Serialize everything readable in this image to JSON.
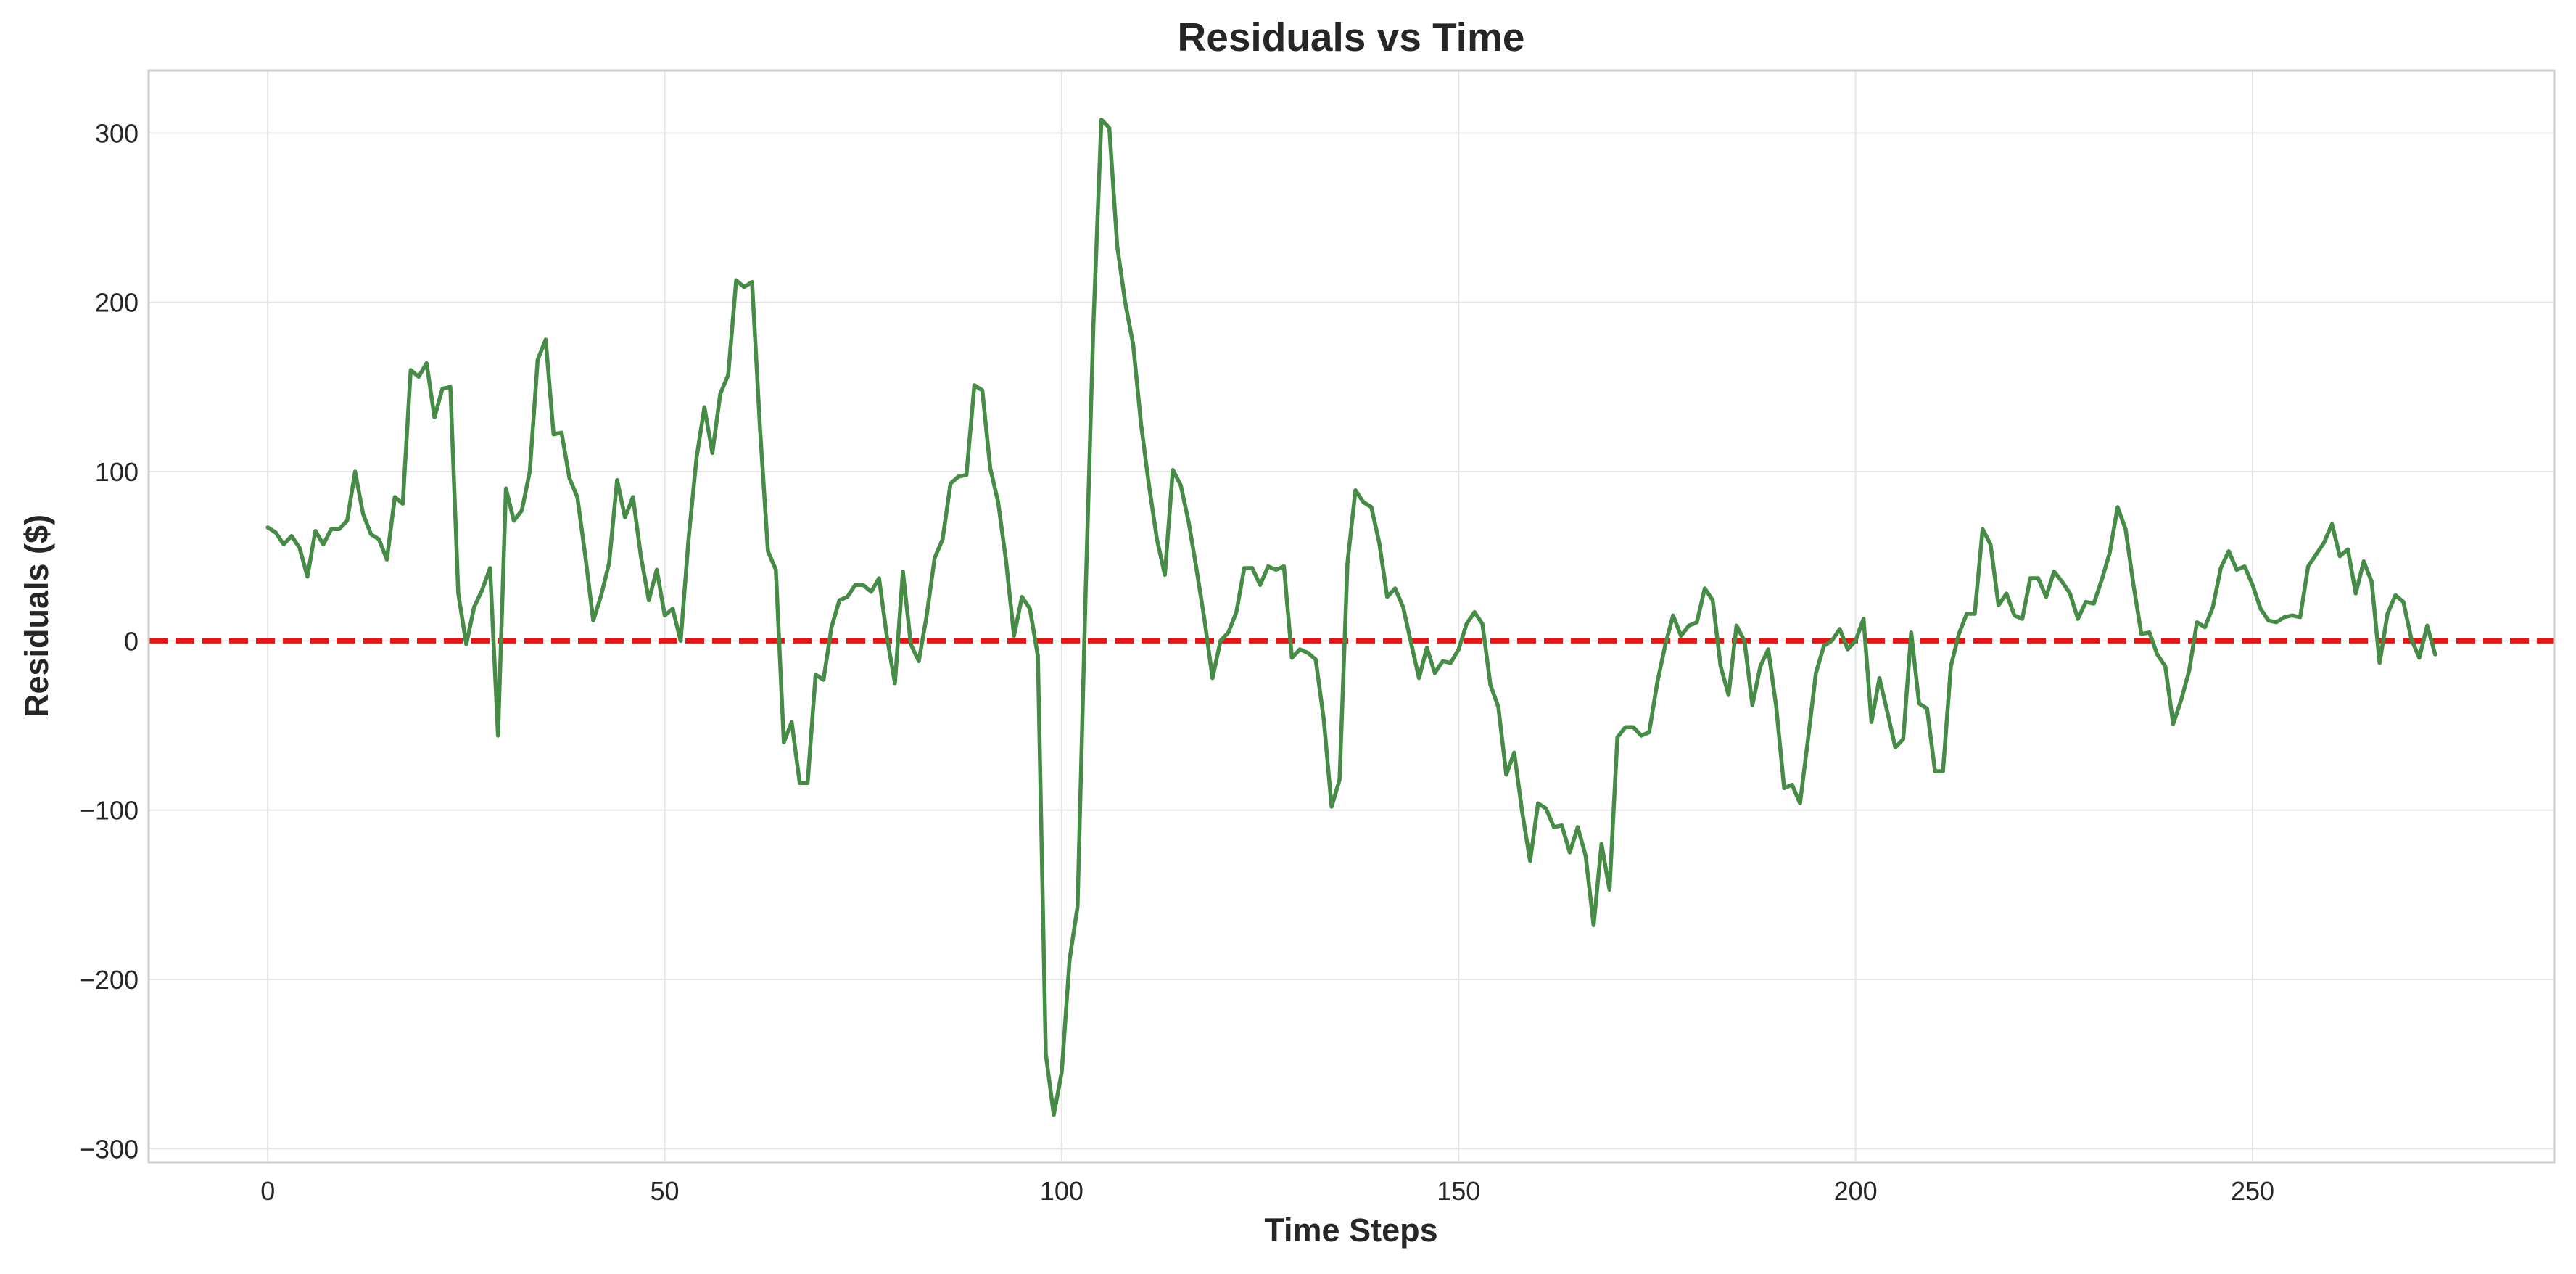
{
  "chart_data": {
    "type": "line",
    "title": "Residuals vs Time",
    "xlabel": "Time Steps",
    "ylabel": "Residuals ($)",
    "xlim": [
      -15,
      288
    ],
    "ylim": [
      -308,
      337
    ],
    "x_ticks": [
      0,
      50,
      100,
      150,
      200,
      250
    ],
    "y_ticks": [
      -300,
      -200,
      -100,
      0,
      100,
      200,
      300
    ],
    "x_tick_labels": [
      "0",
      "50",
      "100",
      "150",
      "200",
      "250"
    ],
    "y_tick_labels": [
      "−300",
      "−200",
      "−100",
      "0",
      "100",
      "200",
      "300"
    ],
    "grid": true,
    "reference_line": {
      "y": 0,
      "color": "#ee1111",
      "style": "dashed"
    },
    "series": [
      {
        "color": "#468c46",
        "x_start": 0,
        "values": [
          67,
          64,
          57,
          62,
          55,
          38,
          65,
          57,
          66,
          66,
          71,
          100,
          75,
          63,
          60,
          48,
          85,
          81,
          160,
          156,
          164,
          132,
          149,
          150,
          28,
          -2,
          20,
          30,
          43,
          -56,
          90,
          71,
          77,
          100,
          166,
          178,
          122,
          123,
          96,
          85,
          50,
          12,
          27,
          46,
          95,
          73,
          85,
          50,
          24,
          42,
          15,
          19,
          0,
          60,
          108,
          138,
          111,
          146,
          157,
          213,
          209,
          212,
          126,
          53,
          42,
          -60,
          -48,
          -84,
          -84,
          -20,
          -23,
          8,
          24,
          26,
          33,
          33,
          29,
          37,
          2,
          -25,
          41,
          -2,
          -12,
          15,
          49,
          60,
          93,
          97,
          98,
          151,
          148,
          102,
          82,
          47,
          3,
          26,
          19,
          -9,
          -244,
          -280,
          -255,
          -188,
          -157,
          26,
          187,
          308,
          303,
          233,
          200,
          175,
          128,
          92,
          60,
          39,
          101,
          92,
          70,
          42,
          12,
          -22,
          0,
          5,
          17,
          43,
          43,
          33,
          44,
          42,
          44,
          -10,
          -5,
          -7,
          -11,
          -46,
          -98,
          -82,
          46,
          89,
          82,
          79,
          58,
          26,
          31,
          20,
          -1,
          -22,
          -4,
          -19,
          -12,
          -13,
          -5,
          10,
          17,
          10,
          -26,
          -39,
          -79,
          -66,
          -101,
          -130,
          -96,
          -99,
          -110,
          -109,
          -125,
          -110,
          -127,
          -168,
          -120,
          -147,
          -57,
          -51,
          -51,
          -56,
          -54,
          -25,
          -3,
          15,
          3,
          9,
          11,
          31,
          24,
          -15,
          -32,
          9,
          0,
          -38,
          -15,
          -5,
          -39,
          -87,
          -85,
          -96,
          -58,
          -19,
          -3,
          0,
          7,
          -5,
          0,
          13,
          -48,
          -22,
          -42,
          -63,
          -58,
          5,
          -37,
          -40,
          -77,
          -77,
          -15,
          4,
          16,
          16,
          66,
          57,
          21,
          28,
          15,
          13,
          37,
          37,
          26,
          41,
          35,
          28,
          13,
          23,
          22,
          36,
          52,
          79,
          66,
          33,
          4,
          5,
          -8,
          -15,
          -49,
          -35,
          -18,
          11,
          8,
          20,
          43,
          53,
          42,
          44,
          33,
          19,
          12,
          11,
          14,
          15,
          14,
          44,
          51,
          58,
          69,
          50,
          54,
          28,
          47,
          35,
          -13,
          16,
          27,
          23,
          1,
          -10,
          9,
          -8
        ]
      }
    ]
  }
}
